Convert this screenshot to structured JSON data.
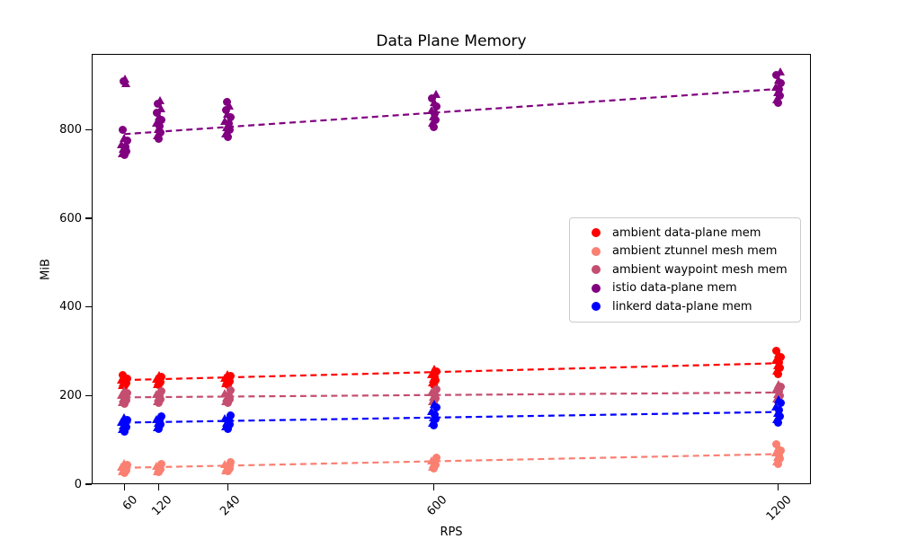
{
  "chart_data": {
    "type": "scatter",
    "title": "Data Plane Memory",
    "xlabel": "RPS",
    "ylabel": "MiB",
    "x_ticks": [
      60,
      120,
      240,
      600,
      1200
    ],
    "y_ticks": [
      0,
      200,
      400,
      600,
      800
    ],
    "x_axis_range": [
      3,
      1257
    ],
    "y_axis_range": [
      0,
      971
    ],
    "grid": false,
    "legend_position": "center-right",
    "rps_levels": [
      60,
      120,
      240,
      600,
      1200
    ],
    "series": [
      {
        "name": "ambient data-plane mem",
        "color": "#ff0000",
        "trend": {
          "x": [
            60,
            1200
          ],
          "y": [
            235,
            273
          ]
        },
        "samples": [
          [
            221,
            225,
            228,
            231,
            233,
            236,
            239,
            243,
            247
          ],
          [
            223,
            227,
            230,
            232,
            235,
            238,
            242,
            246
          ],
          [
            225,
            229,
            232,
            235,
            237,
            240,
            244,
            248
          ],
          [
            224,
            230,
            235,
            239,
            243,
            248,
            254,
            261
          ],
          [
            249,
            257,
            263,
            269,
            274,
            280,
            287,
            294,
            301
          ]
        ]
      },
      {
        "name": "ambient ztunnel mesh mem",
        "color": "#fa8072",
        "trend": {
          "x": [
            60,
            1200
          ],
          "y": [
            37,
            68
          ]
        },
        "samples": [
          [
            26,
            29,
            32,
            34,
            36,
            39,
            43,
            47
          ],
          [
            27,
            30,
            33,
            35,
            38,
            41,
            45
          ],
          [
            29,
            32,
            35,
            38,
            41,
            45,
            49
          ],
          [
            35,
            39,
            43,
            46,
            50,
            54,
            59
          ],
          [
            45,
            52,
            57,
            62,
            66,
            71,
            77,
            84,
            91
          ]
        ]
      },
      {
        "name": "ambient waypoint mesh mem",
        "color": "#c44e70",
        "trend": {
          "x": [
            60,
            1200
          ],
          "y": [
            196,
            207
          ]
        },
        "samples": [
          [
            181,
            186,
            190,
            194,
            197,
            201,
            206,
            212
          ],
          [
            183,
            187,
            191,
            195,
            199,
            203,
            209
          ],
          [
            184,
            188,
            192,
            196,
            200,
            205,
            211
          ],
          [
            183,
            188,
            193,
            197,
            201,
            207,
            213
          ],
          [
            188,
            194,
            199,
            204,
            209,
            214,
            220,
            227
          ]
        ]
      },
      {
        "name": "istio data-plane mem",
        "color": "#800080",
        "trend": {
          "x": [
            60,
            1200
          ],
          "y": [
            790,
            892
          ]
        },
        "samples": [
          [
            742,
            747,
            752,
            757,
            762,
            768,
            775,
            782,
            800,
            905,
            910,
            916
          ],
          [
            779,
            787,
            794,
            801,
            808,
            815,
            822,
            830,
            839,
            849,
            859,
            867
          ],
          [
            784,
            792,
            799,
            806,
            813,
            820,
            828,
            836,
            845,
            855,
            863
          ],
          [
            806,
            815,
            823,
            830,
            837,
            845,
            853,
            862,
            871,
            880
          ],
          [
            861,
            869,
            877,
            884,
            891,
            898,
            906,
            914,
            923,
            932
          ]
        ]
      },
      {
        "name": "linkerd data-plane mem",
        "color": "#0000ff",
        "trend": {
          "x": [
            60,
            1200
          ],
          "y": [
            139,
            163
          ]
        },
        "samples": [
          [
            119,
            124,
            128,
            132,
            136,
            140,
            145,
            151
          ],
          [
            124,
            129,
            134,
            138,
            142,
            147,
            153
          ],
          [
            125,
            130,
            135,
            139,
            144,
            149,
            155
          ],
          [
            132,
            139,
            146,
            152,
            158,
            165,
            173,
            181
          ],
          [
            139,
            147,
            154,
            161,
            168,
            175,
            183,
            191
          ]
        ]
      }
    ]
  }
}
